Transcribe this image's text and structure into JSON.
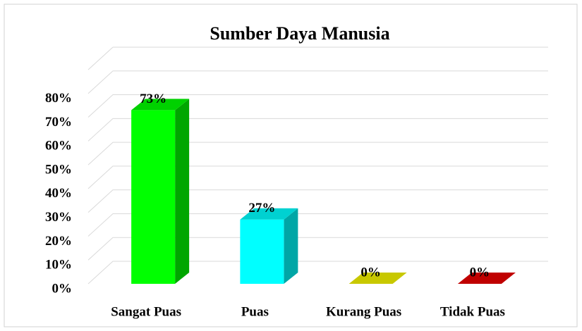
{
  "chart_data": {
    "type": "bar3d",
    "title": "Sumber Daya Manusia",
    "categories": [
      "Sangat Puas",
      "Puas",
      "Kurang Puas",
      "Tidak Puas"
    ],
    "values": [
      73,
      27,
      0,
      0
    ],
    "value_labels": [
      "73%",
      "27%",
      "0%",
      "0%"
    ],
    "colors": [
      "#00ff00",
      "#00ffff",
      "#c8c800",
      "#c00000"
    ],
    "ylim": [
      0,
      90
    ],
    "yticks": [
      {
        "value": 0,
        "label": "0%"
      },
      {
        "value": 10,
        "label": "10%"
      },
      {
        "value": 20,
        "label": "20%"
      },
      {
        "value": 30,
        "label": "30%"
      },
      {
        "value": 40,
        "label": "40%"
      },
      {
        "value": 50,
        "label": "50%"
      },
      {
        "value": 60,
        "label": "60%"
      },
      {
        "value": 70,
        "label": "70%"
      },
      {
        "value": 80,
        "label": "80%"
      }
    ],
    "grid": true
  }
}
